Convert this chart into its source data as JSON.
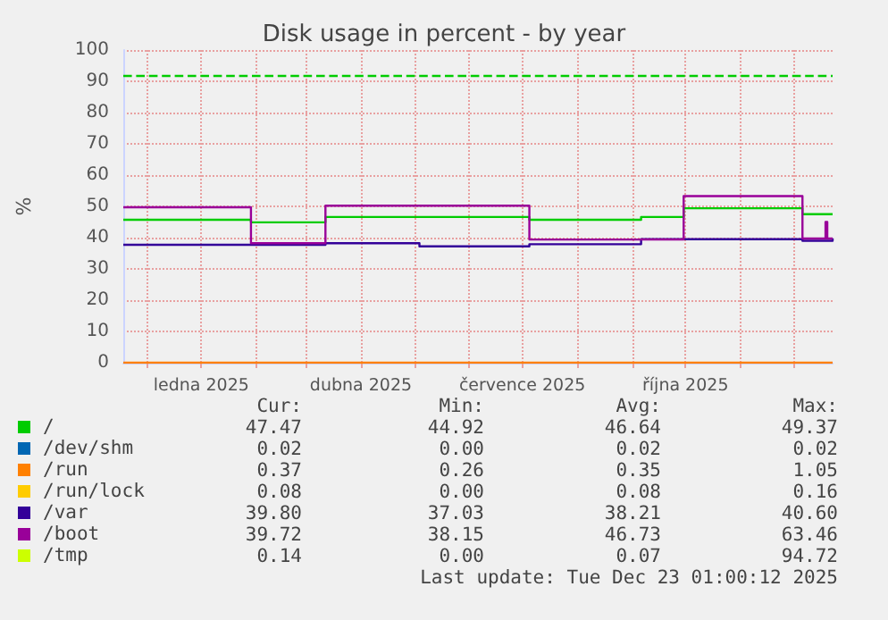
{
  "chart_data": {
    "type": "step",
    "title": "Disk usage in percent - by year",
    "ylabel": "%",
    "xlim": [
      "2024-11-18",
      "2025-12-23"
    ],
    "ylim": [
      0,
      100
    ],
    "xticks": [
      {
        "value": "2024-12-01",
        "label": null
      },
      {
        "value": "2025-01-01",
        "label": "ledna 2025"
      },
      {
        "value": "2025-02-01",
        "label": null
      },
      {
        "value": "2025-03-01",
        "label": null
      },
      {
        "value": "2025-04-01",
        "label": "dubna 2025"
      },
      {
        "value": "2025-05-01",
        "label": null
      },
      {
        "value": "2025-06-01",
        "label": null
      },
      {
        "value": "2025-07-01",
        "label": "července 2025"
      },
      {
        "value": "2025-08-01",
        "label": null
      },
      {
        "value": "2025-09-01",
        "label": null
      },
      {
        "value": "2025-10-01",
        "label": "října 2025"
      },
      {
        "value": "2025-11-01",
        "label": null
      },
      {
        "value": "2025-12-01",
        "label": null
      }
    ],
    "yticks": [
      0,
      10,
      20,
      30,
      40,
      50,
      60,
      70,
      80,
      90,
      100
    ],
    "grid": true,
    "legend": "bottom left",
    "marker": "none",
    "line_style": "solid",
    "ref_lines": [
      {
        "axis": "y",
        "value": 92,
        "color": "#00cc00",
        "line_style": "dashed"
      }
    ],
    "series": [
      {
        "name": "/",
        "color": "#00cc00",
        "x": [
          "2024-11-18",
          "2025-01-29",
          "2025-03-12",
          "2025-07-05",
          "2025-09-06",
          "2025-09-30",
          "2025-12-06",
          "2025-12-23"
        ],
        "values": [
          45.7,
          44.9,
          46.6,
          45.7,
          46.6,
          49.4,
          47.5,
          47.5
        ]
      },
      {
        "name": "/dev/shm",
        "color": "#0066b3"
      },
      {
        "name": "/run",
        "color": "#ff8000",
        "x": [
          "2024-11-18",
          "2025-12-23"
        ],
        "values": [
          0,
          0
        ]
      },
      {
        "name": "/run/lock",
        "color": "#ffcc00"
      },
      {
        "name": "/var",
        "color": "#330099",
        "x": [
          "2024-11-18",
          "2025-03-12",
          "2025-05-04",
          "2025-07-05",
          "2025-09-06",
          "2025-12-06",
          "2025-12-23"
        ],
        "values": [
          37.7,
          38.2,
          37.2,
          37.9,
          39.5,
          39.0,
          39.8
        ]
      },
      {
        "name": "/boot",
        "color": "#990099",
        "x": [
          "2024-11-18",
          "2025-01-29",
          "2025-03-12",
          "2025-07-05",
          "2025-09-30",
          "2025-12-06",
          "2025-12-19",
          "2025-12-20",
          "2025-12-23"
        ],
        "values": [
          49.7,
          38.2,
          50.2,
          39.4,
          53.3,
          39.7,
          45,
          39.7,
          39.7
        ]
      },
      {
        "name": "/tmp",
        "color": "#ccff00"
      }
    ],
    "annotations": [
      "Cur:",
      "Min:",
      "Avg:",
      "Max:",
      "47.47",
      "44.92",
      "46.64",
      "49.37",
      "0.02",
      "0.00",
      "0.02",
      "0.02",
      "0.37",
      "0.26",
      "0.35",
      "1.05",
      "0.08",
      "0.00",
      "0.08",
      "0.16",
      "39.80",
      "37.03",
      "38.21",
      "40.60",
      "39.72",
      "38.15",
      "46.73",
      "63.46",
      "0.14",
      "0.00",
      "0.07",
      "94.72",
      "Last update: Tue Dec 23 01:00:12 2025"
    ]
  }
}
